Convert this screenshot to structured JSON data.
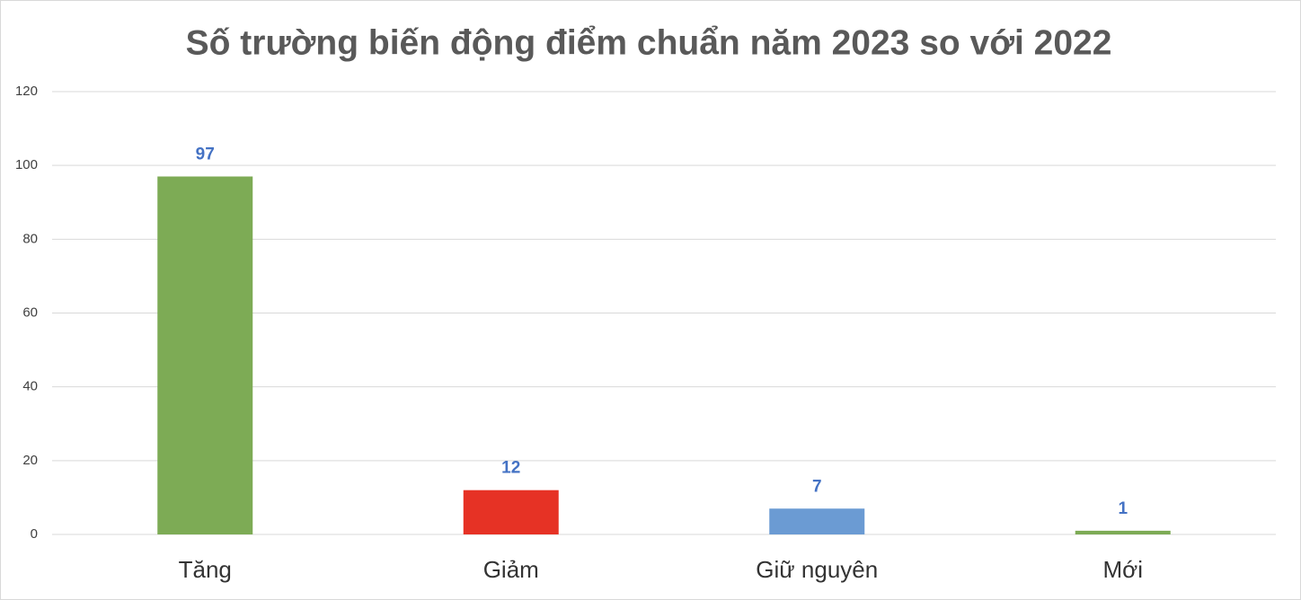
{
  "chart_data": {
    "type": "bar",
    "title": "Số trường biến động điểm chuẩn năm 2023 so với 2022",
    "categories": [
      "Tăng",
      "Giảm",
      "Giữ nguyên",
      "Mới"
    ],
    "values": [
      97,
      12,
      7,
      1
    ],
    "colors": [
      "#7dab55",
      "#e63225",
      "#6b9bd3",
      "#7dab55"
    ],
    "ylim": [
      0,
      120
    ],
    "yticks": [
      0,
      20,
      40,
      60,
      80,
      100,
      120
    ],
    "grid": true
  }
}
